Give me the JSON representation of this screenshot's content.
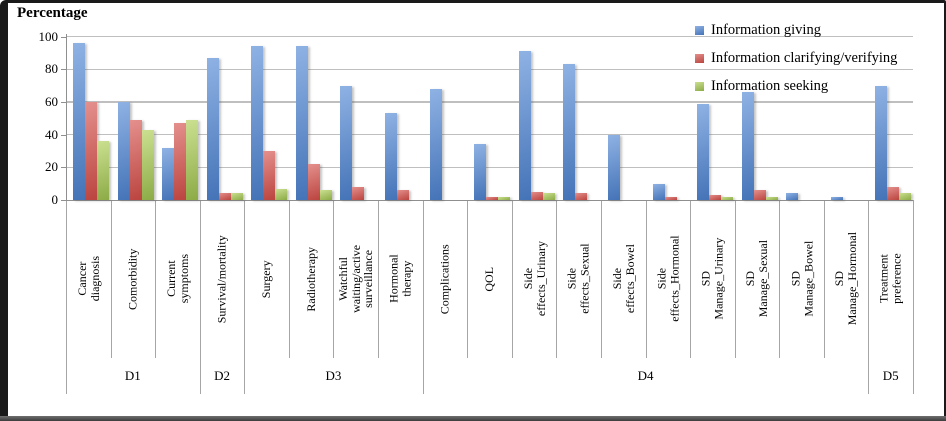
{
  "frame": {
    "border_color": "#1a1a1a"
  },
  "chart_data": {
    "type": "bar",
    "title": "Percentage",
    "xlabel": "",
    "ylabel": "Percentage",
    "ylim": [
      0,
      100
    ],
    "yticks": [
      100,
      80,
      60,
      40,
      20,
      0
    ],
    "grid": true,
    "legend_position": "top-right",
    "categories": [
      "Cancer diagnosis",
      "Comorbidity",
      "Current symptoms",
      "Survival/mortality",
      "Surgery",
      "Radiotherapy",
      "Watchful waiting/active surveillance",
      "Hormonal therapy",
      "Complications",
      "QOL",
      "Side effects_Urinary",
      "Side effects_Sexual",
      "Side effects_Bowel",
      "Side effects_Hormonal",
      "SD Manage_Urinary",
      "SD Manage_Sexual",
      "SD Manage_Bowel",
      "SD Manage_Hormonal",
      "Treatment preference"
    ],
    "groups": [
      {
        "label": "D1",
        "count": 3
      },
      {
        "label": "D2",
        "count": 1
      },
      {
        "label": "D3",
        "count": 4
      },
      {
        "label": "D4",
        "count": 10
      },
      {
        "label": "D5",
        "count": 1
      }
    ],
    "series": [
      {
        "name": "Information giving",
        "color": "#4F81BD",
        "fill_light": "#8FB2E4",
        "fill_dark": "#4473B7",
        "values": [
          96,
          60,
          32,
          87,
          94,
          94,
          70,
          53,
          68,
          34,
          91,
          83,
          40,
          10,
          59,
          66,
          4,
          2,
          70
        ]
      },
      {
        "name": "Information clarifying/verifying",
        "color": "#C0504D",
        "fill_light": "#E4908D",
        "fill_dark": "#BB443F",
        "values": [
          60,
          49,
          47,
          4,
          30,
          22,
          8,
          6,
          0,
          2,
          5,
          4,
          0,
          2,
          3,
          6,
          0,
          0,
          8
        ]
      },
      {
        "name": "Information seeking",
        "color": "#9BBB59",
        "fill_light": "#CBE091",
        "fill_dark": "#8CAB46",
        "values": [
          36,
          43,
          49,
          4,
          7,
          6,
          0,
          0,
          0,
          2,
          4,
          0,
          0,
          0,
          2,
          2,
          0,
          0,
          4
        ]
      }
    ]
  }
}
